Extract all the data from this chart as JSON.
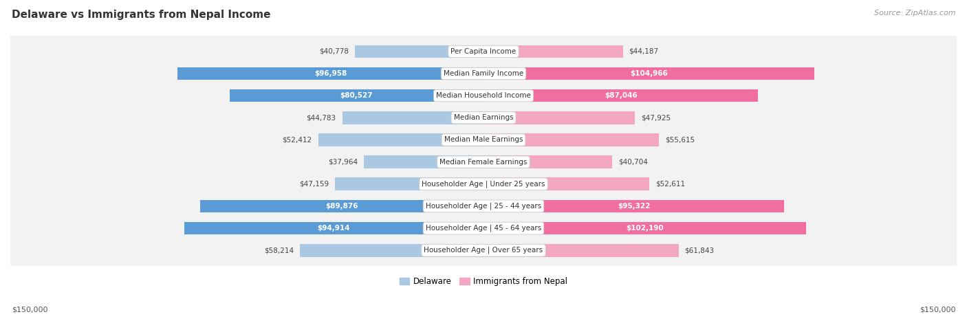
{
  "title": "Delaware vs Immigrants from Nepal Income",
  "source": "Source: ZipAtlas.com",
  "categories": [
    "Per Capita Income",
    "Median Family Income",
    "Median Household Income",
    "Median Earnings",
    "Median Male Earnings",
    "Median Female Earnings",
    "Householder Age | Under 25 years",
    "Householder Age | 25 - 44 years",
    "Householder Age | 45 - 64 years",
    "Householder Age | Over 65 years"
  ],
  "delaware_values": [
    40778,
    96958,
    80527,
    44783,
    52412,
    37964,
    47159,
    89876,
    94914,
    58214
  ],
  "nepal_values": [
    44187,
    104966,
    87046,
    47925,
    55615,
    40704,
    52611,
    95322,
    102190,
    61843
  ],
  "delaware_labels": [
    "$40,778",
    "$96,958",
    "$80,527",
    "$44,783",
    "$52,412",
    "$37,964",
    "$47,159",
    "$89,876",
    "$94,914",
    "$58,214"
  ],
  "nepal_labels": [
    "$44,187",
    "$104,966",
    "$87,046",
    "$47,925",
    "$55,615",
    "$40,704",
    "$52,611",
    "$95,322",
    "$102,190",
    "$61,843"
  ],
  "delaware_color_light": "#abc8e2",
  "delaware_color_dark": "#5b9bd5",
  "nepal_color_light": "#f4a7c3",
  "nepal_color_dark": "#f06fa0",
  "max_value": 150000,
  "background_color": "#ffffff",
  "row_bg_color": "#f2f2f2",
  "row_border_color": "#d8d8d8",
  "legend_delaware": "Delaware",
  "legend_nepal": "Immigrants from Nepal",
  "xlabel_left": "$150,000",
  "xlabel_right": "$150,000",
  "del_large_threshold": 75000,
  "nep_large_threshold": 85000
}
